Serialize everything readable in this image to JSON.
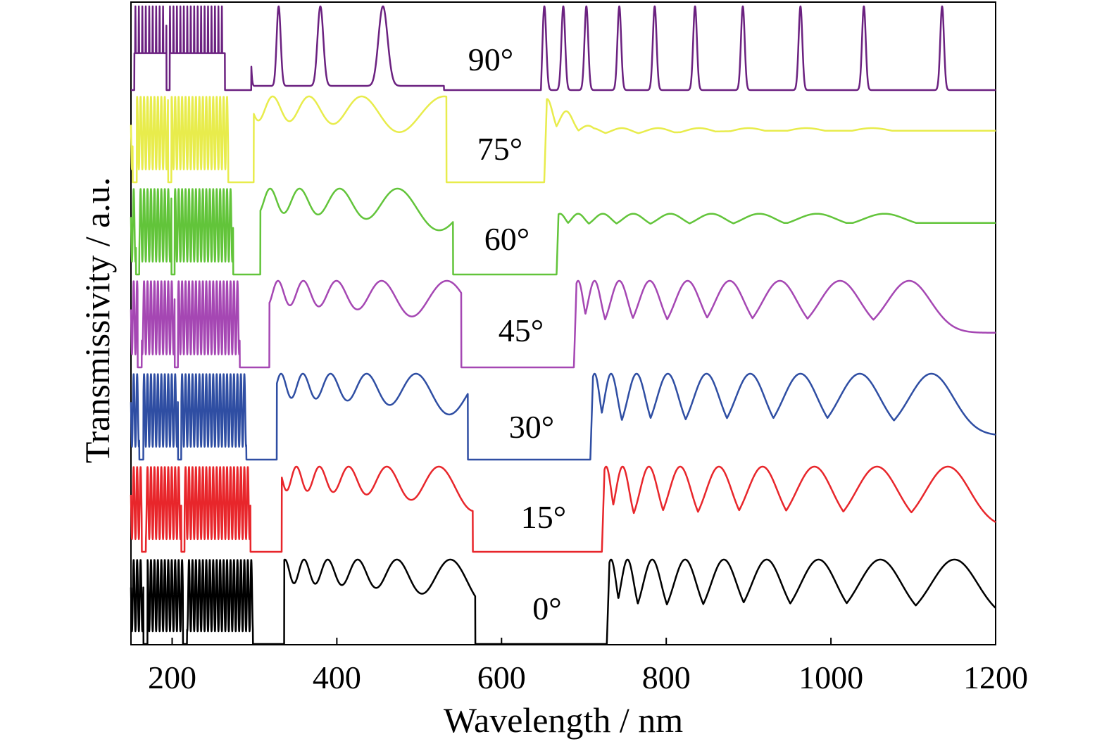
{
  "chart_data": {
    "type": "line",
    "xlabel": "Wavelength / nm",
    "ylabel": "Transmissivity / a.u.",
    "xlim": [
      150,
      1200
    ],
    "x_ticks": [
      200,
      400,
      600,
      800,
      1000,
      1200
    ],
    "x_tick_labels": [
      "200",
      "400",
      "600",
      "800",
      "1000",
      "1200"
    ],
    "y_ticks": [],
    "grid": false,
    "legend": "none",
    "layout": "vertically offset stacked spectra, one per incidence angle (0° bottom, 90° top)",
    "series": [
      {
        "name": "0°",
        "label": "0°",
        "color": "#000000",
        "gaps_nm": [
          [
            165,
            170
          ],
          [
            213,
            218
          ],
          [
            298,
            336
          ],
          [
            568,
            728
          ]
        ],
        "fringe_peaks_nm": [
          733,
          753,
          783,
          823,
          870,
          922,
          985,
          1060,
          1150
        ]
      },
      {
        "name": "15°",
        "label": "15°",
        "color": "#e8262b",
        "gaps_nm": [
          [
            163,
            168
          ],
          [
            211,
            215
          ],
          [
            295,
            333
          ],
          [
            565,
            722
          ]
        ],
        "fringe_peaks_nm": [
          727,
          747,
          779,
          817,
          864,
          917,
          980,
          1056,
          1142
        ]
      },
      {
        "name": "30°",
        "label": "30°",
        "color": "#2f4ea3",
        "gaps_nm": [
          [
            160,
            165
          ],
          [
            207,
            211
          ],
          [
            290,
            327
          ],
          [
            559,
            708
          ]
        ],
        "fringe_peaks_nm": [
          713,
          733,
          764,
          802,
          849,
          902,
          963,
          1035,
          1122
        ]
      },
      {
        "name": "45°",
        "label": "45°",
        "color": "#a547b3",
        "gaps_nm": [
          [
            158,
            163
          ],
          [
            203,
            207
          ],
          [
            282,
            318
          ],
          [
            551,
            688
          ]
        ],
        "fringe_peaks_nm": [
          693,
          713,
          743,
          780,
          826,
          877,
          938,
          1011,
          1095
        ]
      },
      {
        "name": "60°",
        "label": "60°",
        "color": "#62c43a",
        "gaps_nm": [
          [
            156,
            160
          ],
          [
            199,
            203
          ],
          [
            274,
            307
          ],
          [
            541,
            667
          ]
        ],
        "fringe_peaks_nm": [
          671,
          693,
          723,
          760,
          805,
          855,
          913,
          983,
          1065
        ]
      },
      {
        "name": "75°",
        "label": "75°",
        "color": "#e8ec4c",
        "gaps_nm": [
          [
            152,
            157
          ],
          [
            195,
            199
          ],
          [
            268,
            299
          ],
          [
            533,
            652
          ]
        ],
        "fringe_peaks_nm": [
          656,
          680,
          710,
          746,
          790,
          840,
          900,
          970,
          1050
        ]
      },
      {
        "name": "90°",
        "label": "90°",
        "color": "#6b2180",
        "gaps_nm": [
          [
            150,
            154
          ],
          [
            193,
            197
          ],
          [
            264,
            296
          ],
          [
            530,
            648
          ]
        ],
        "fringe_peaks_nm": [
          652,
          675,
          703,
          743,
          786,
          835,
          893,
          963,
          1040,
          1135
        ]
      }
    ]
  }
}
